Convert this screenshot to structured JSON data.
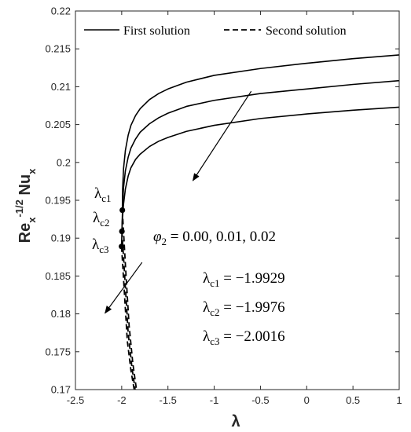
{
  "chart_data": {
    "type": "line",
    "xlabel": "λ",
    "ylabel": {
      "base": "Re",
      "sub": "x",
      "sup": "-1/2",
      "base2": "Nu",
      "sub2": "x"
    },
    "xlim": [
      -2.5,
      1
    ],
    "ylim": [
      0.17,
      0.22
    ],
    "xticks": [
      "-2.5",
      "-2",
      "-1.5",
      "-1",
      "-0.5",
      "0",
      "0.5",
      "1"
    ],
    "xtick_values": [
      -2.5,
      -2,
      -1.5,
      -1,
      -0.5,
      0,
      0.5,
      1
    ],
    "yticks": [
      "0.17",
      "0.175",
      "0.18",
      "0.185",
      "0.19",
      "0.195",
      "0.2",
      "0.205",
      "0.21",
      "0.215",
      "0.22"
    ],
    "ytick_values": [
      0.17,
      0.175,
      0.18,
      0.185,
      0.19,
      0.195,
      0.2,
      0.205,
      0.21,
      0.215,
      0.22
    ],
    "grid": false,
    "legend": {
      "placement": "top",
      "entries": [
        {
          "label": "First solution",
          "style": "solid"
        },
        {
          "label": "Second solution",
          "style": "dashed"
        }
      ]
    },
    "series": [
      {
        "group": "first",
        "style": "solid",
        "x": [
          -1.9929,
          -1.99,
          -1.98,
          -1.96,
          -1.93,
          -1.9,
          -1.85,
          -1.8,
          -1.7,
          -1.6,
          -1.5,
          -1.3,
          -1.0,
          -0.5,
          0.0,
          0.5,
          1.0
        ],
        "y": [
          0.1937,
          0.1965,
          0.1992,
          0.2016,
          0.2036,
          0.2049,
          0.2062,
          0.2071,
          0.2083,
          0.2091,
          0.2097,
          0.2106,
          0.2115,
          0.2124,
          0.2131,
          0.2137,
          0.2142
        ]
      },
      {
        "group": "first",
        "style": "solid",
        "x": [
          -1.9976,
          -1.99,
          -1.98,
          -1.96,
          -1.93,
          -1.9,
          -1.85,
          -1.8,
          -1.7,
          -1.6,
          -1.5,
          -1.3,
          -1.0,
          -0.5,
          0.0,
          0.5,
          1.0
        ],
        "y": [
          0.1909,
          0.1942,
          0.1967,
          0.1989,
          0.2007,
          0.2019,
          0.2031,
          0.204,
          0.2051,
          0.2059,
          0.2065,
          0.2074,
          0.2082,
          0.2091,
          0.2097,
          0.2103,
          0.2108
        ]
      },
      {
        "group": "first",
        "style": "solid",
        "x": [
          -2.0016,
          -1.995,
          -1.98,
          -1.96,
          -1.93,
          -1.9,
          -1.85,
          -1.8,
          -1.7,
          -1.6,
          -1.5,
          -1.3,
          -1.0,
          -0.5,
          0.0,
          0.5,
          1.0
        ],
        "y": [
          0.1889,
          0.1921,
          0.1945,
          0.1965,
          0.1982,
          0.1993,
          0.2004,
          0.2011,
          0.2021,
          0.2028,
          0.2033,
          0.2041,
          0.2049,
          0.2058,
          0.2064,
          0.2069,
          0.2073
        ]
      },
      {
        "group": "second",
        "style": "dashed",
        "x": [
          -1.9929,
          -1.96,
          -1.92,
          -1.88,
          -1.84
        ],
        "y": [
          0.1937,
          0.1865,
          0.1785,
          0.1735,
          0.17
        ]
      },
      {
        "group": "second",
        "style": "dashed",
        "x": [
          -1.9976,
          -1.965,
          -1.93,
          -1.89,
          -1.855
        ],
        "y": [
          0.1909,
          0.1845,
          0.1775,
          0.173,
          0.17
        ]
      },
      {
        "group": "second",
        "style": "dashed",
        "x": [
          -2.0016,
          -1.972,
          -1.94,
          -1.9,
          -1.865
        ],
        "y": [
          0.1889,
          0.183,
          0.1765,
          0.1725,
          0.17
        ]
      }
    ],
    "critical_points": [
      {
        "label_main": "λ",
        "label_sub": "c1",
        "x": -1.9929,
        "y": 0.1937
      },
      {
        "label_main": "λ",
        "label_sub": "c2",
        "x": -1.9976,
        "y": 0.1909
      },
      {
        "label_main": "λ",
        "label_sub": "c3",
        "x": -2.0016,
        "y": 0.1889
      }
    ],
    "annotations": {
      "phi": {
        "main": "φ",
        "sub": "2",
        "text": " = 0.00, 0.01, 0.02"
      },
      "lambda_values": [
        {
          "main": "λ",
          "sub": "c1",
          "text": " = −1.9929"
        },
        {
          "main": "λ",
          "sub": "c2",
          "text": " = −1.9976"
        },
        {
          "main": "λ",
          "sub": "c3",
          "text": " = −2.0016"
        }
      ],
      "arrows": [
        {
          "from": [
            -0.6,
            0.2094
          ],
          "to": [
            -1.23,
            0.1976
          ]
        },
        {
          "from": [
            -1.78,
            0.1868
          ],
          "to": [
            -2.18,
            0.1801
          ]
        }
      ]
    }
  }
}
